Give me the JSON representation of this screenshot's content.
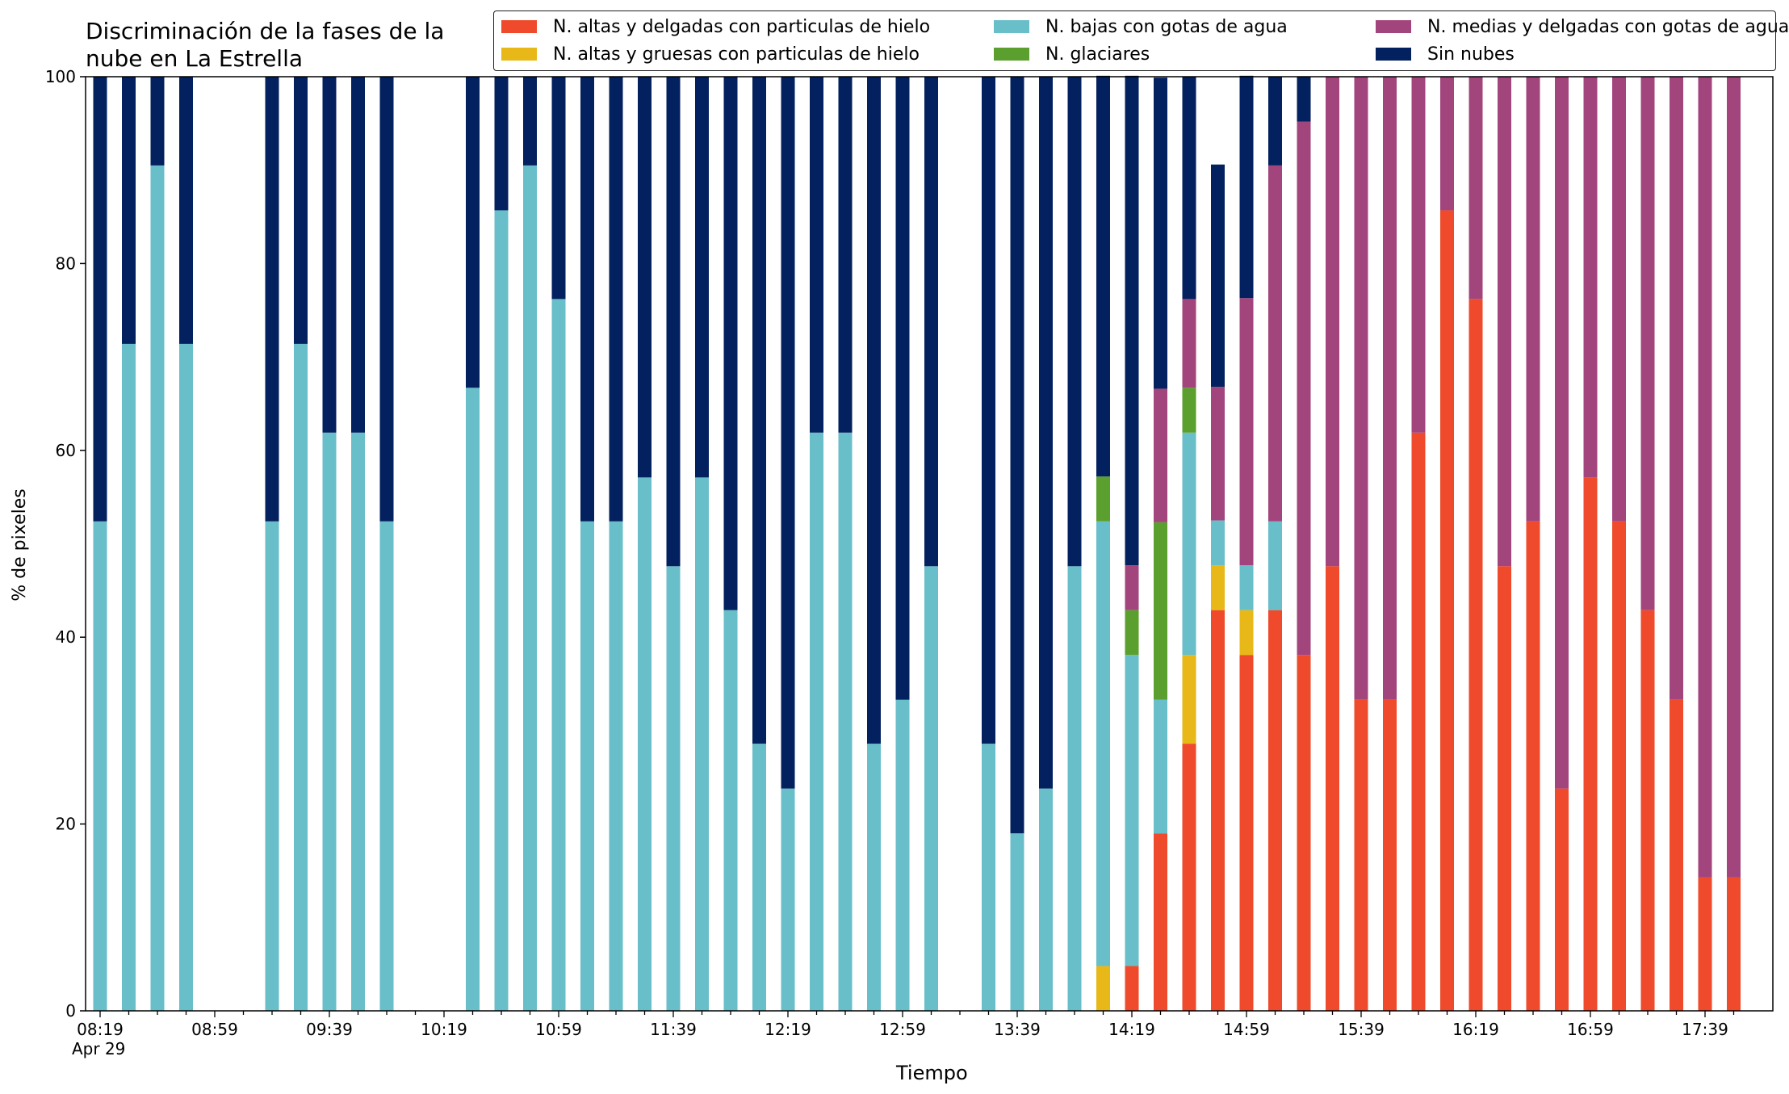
{
  "chart_data": {
    "type": "bar",
    "stacked": true,
    "title": "Discriminación de la fases de la\nnube en La Estrella",
    "xlabel": "Tiempo",
    "ylabel": "% de pixeles",
    "ylim": [
      0,
      100
    ],
    "yticks": [
      0,
      20,
      40,
      60,
      80,
      100
    ],
    "xtick_labels": [
      "08:19\nApr 29",
      "08:59",
      "09:39",
      "10:19",
      "10:59",
      "11:39",
      "12:19",
      "12:59",
      "13:39",
      "14:19",
      "14:59",
      "15:39",
      "16:19",
      "16:59",
      "17:39"
    ],
    "legend_position": "top-right",
    "grid": false,
    "x": [
      "08:19",
      "08:29",
      "08:39",
      "08:49",
      "08:59",
      "09:09",
      "09:19",
      "09:29",
      "09:39",
      "09:49",
      "09:59",
      "10:09",
      "10:19",
      "10:29",
      "10:39",
      "10:49",
      "10:59",
      "11:09",
      "11:19",
      "11:29",
      "11:39",
      "11:49",
      "11:59",
      "12:09",
      "12:19",
      "12:29",
      "12:39",
      "12:49",
      "12:59",
      "13:09",
      "13:19",
      "13:29",
      "13:39",
      "13:49",
      "13:59",
      "14:09",
      "14:19",
      "14:29",
      "14:39",
      "14:49",
      "14:59",
      "15:09",
      "15:19",
      "15:29",
      "15:39",
      "15:49",
      "15:59",
      "16:09",
      "16:19",
      "16:29",
      "16:39",
      "16:49",
      "16:59",
      "17:09",
      "17:19",
      "17:29",
      "17:39",
      "17:49"
    ],
    "series": [
      {
        "name": "N. altas y delgadas con particulas de hielo",
        "color": "#ef4a2b",
        "values": [
          null,
          null,
          null,
          null,
          null,
          null,
          null,
          null,
          null,
          null,
          null,
          null,
          null,
          null,
          null,
          null,
          null,
          null,
          null,
          null,
          null,
          null,
          null,
          null,
          null,
          null,
          null,
          null,
          null,
          null,
          null,
          null,
          null,
          null,
          null,
          0,
          4.8,
          19.0,
          28.6,
          42.9,
          38.1,
          42.9,
          38.1,
          47.6,
          33.3,
          33.3,
          61.9,
          85.7,
          76.2,
          47.6,
          52.4,
          23.8,
          57.1,
          52.4,
          42.9,
          33.3,
          14.3,
          14.3
        ]
      },
      {
        "name": "N. altas y gruesas con particulas de hielo",
        "color": "#e7b817",
        "values": [
          null,
          null,
          null,
          null,
          null,
          null,
          null,
          null,
          null,
          null,
          null,
          null,
          null,
          null,
          null,
          null,
          null,
          null,
          null,
          null,
          null,
          null,
          null,
          null,
          null,
          null,
          null,
          null,
          null,
          null,
          null,
          null,
          null,
          null,
          null,
          4.8,
          0,
          0,
          9.5,
          4.8,
          4.8,
          0,
          0,
          0,
          0,
          0,
          0,
          0,
          0,
          0,
          0,
          0,
          0,
          0,
          0,
          0,
          0,
          0
        ]
      },
      {
        "name": "N. bajas con gotas de agua",
        "color": "#68bec9",
        "values": [
          52.4,
          71.4,
          90.5,
          71.4,
          null,
          null,
          52.4,
          71.4,
          61.9,
          61.9,
          52.4,
          null,
          null,
          66.7,
          85.7,
          90.5,
          76.2,
          52.4,
          52.4,
          57.1,
          47.6,
          57.1,
          42.9,
          28.6,
          23.8,
          61.9,
          61.9,
          28.6,
          33.3,
          47.6,
          null,
          28.6,
          19.0,
          23.8,
          47.6,
          47.6,
          33.3,
          14.3,
          23.8,
          4.8,
          4.8,
          9.5,
          0,
          0,
          0,
          0,
          0,
          0,
          0,
          0,
          0,
          0,
          0,
          0,
          0,
          0,
          0,
          0
        ]
      },
      {
        "name": "N. glaciares",
        "color": "#5ba02e",
        "values": [
          null,
          null,
          null,
          null,
          null,
          null,
          null,
          null,
          null,
          null,
          null,
          null,
          null,
          null,
          null,
          null,
          null,
          null,
          null,
          null,
          null,
          null,
          null,
          null,
          null,
          null,
          null,
          null,
          null,
          null,
          null,
          null,
          null,
          null,
          null,
          4.8,
          4.8,
          19.0,
          4.8,
          0,
          0,
          0,
          0,
          0,
          0,
          0,
          0,
          0,
          0,
          0,
          0,
          0,
          0,
          0,
          0,
          0,
          0,
          0
        ]
      },
      {
        "name": "N. medias y delgadas con gotas de agua",
        "color": "#a3457d",
        "values": [
          null,
          null,
          null,
          null,
          null,
          null,
          null,
          null,
          null,
          null,
          null,
          null,
          null,
          null,
          null,
          null,
          null,
          null,
          null,
          null,
          null,
          null,
          null,
          null,
          null,
          null,
          null,
          null,
          null,
          null,
          null,
          null,
          null,
          null,
          null,
          0,
          4.8,
          14.3,
          9.5,
          14.3,
          28.6,
          38.1,
          57.1,
          52.4,
          66.7,
          66.7,
          38.1,
          14.3,
          23.8,
          52.4,
          47.6,
          76.2,
          42.9,
          47.6,
          57.1,
          66.7,
          85.7,
          85.7
        ]
      },
      {
        "name": "Sin nubes",
        "color": "#03205f",
        "values": [
          47.6,
          28.6,
          9.5,
          28.6,
          null,
          null,
          47.6,
          28.6,
          38.1,
          38.1,
          47.6,
          null,
          null,
          33.3,
          14.3,
          9.5,
          23.8,
          47.6,
          47.6,
          42.9,
          52.4,
          42.9,
          57.1,
          71.4,
          76.2,
          38.1,
          38.1,
          71.4,
          66.7,
          52.4,
          null,
          71.4,
          81.0,
          76.2,
          52.4,
          42.9,
          52.4,
          33.3,
          23.8,
          23.8,
          23.8,
          9.5,
          4.8,
          0,
          0,
          0,
          0,
          0,
          0,
          0,
          0,
          0,
          0,
          0,
          0,
          0,
          0,
          0
        ]
      }
    ]
  }
}
